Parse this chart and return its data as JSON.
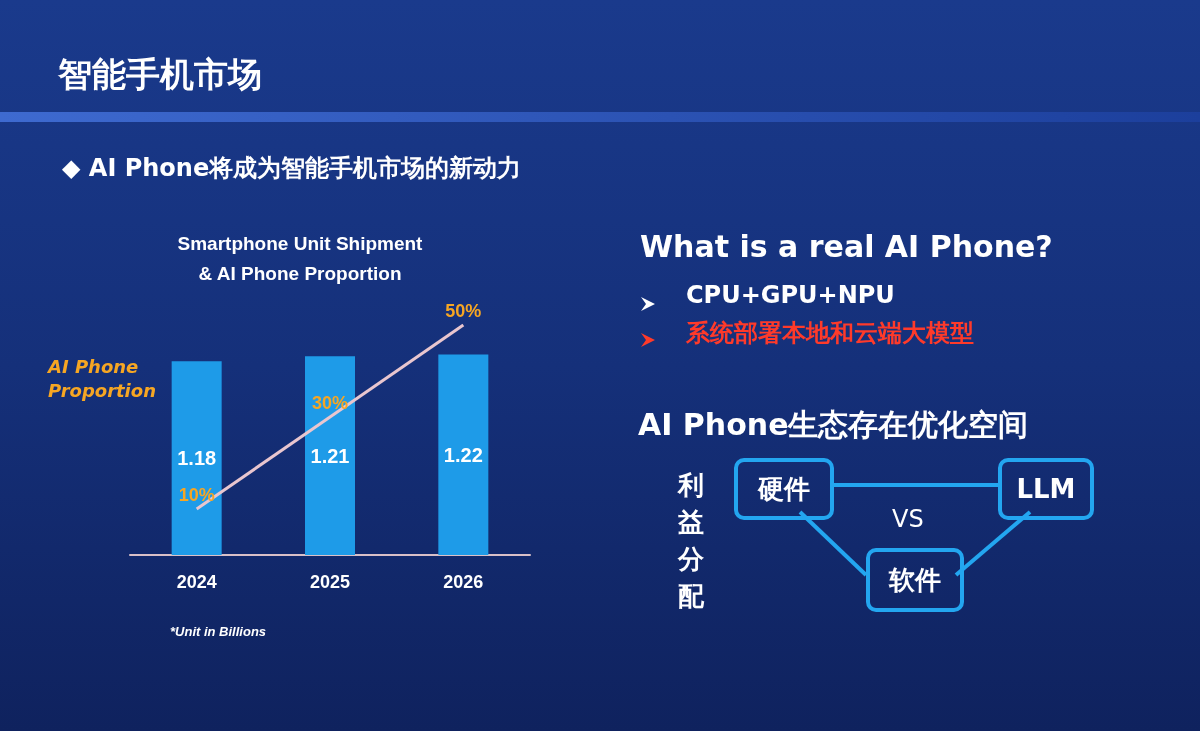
{
  "chart_data": [
    {
      "type": "other",
      "title": "智能手机市场",
      "subtitle": "◆ AI Phone将成为智能手机市场的新动力"
    },
    {
      "type": "bar",
      "title": "Smartphone Unit Shipment\n& AI Phone Proportion",
      "categories": [
        "2024",
        "2025",
        "2026"
      ],
      "tick_labels": "x",
      "legend": false,
      "grid": false,
      "annotations": [
        "*Unit in Billions"
      ],
      "series": [
        {
          "type": "bar",
          "color": "#1e9be8",
          "values": [
            1.18,
            1.21,
            1.22
          ],
          "value_labels": [
            "1.18",
            "1.21",
            "1.22"
          ]
        },
        {
          "type": "line",
          "name": "AI Phone Proportion",
          "axis": "y2",
          "color": "#e9c6cf",
          "values": [
            10,
            30,
            50
          ],
          "value_labels": [
            "10%",
            "30%",
            "50%"
          ]
        }
      ]
    },
    {
      "type": "other",
      "title": "What is a real AI Phone?",
      "annotations": [
        "CPU+GPU+NPU",
        "系统部署本地和云端大模型",
        "AI Phone生态存在优化空间",
        "利益分配",
        "硬件",
        "LLM",
        "VS",
        "软件"
      ]
    }
  ]
}
